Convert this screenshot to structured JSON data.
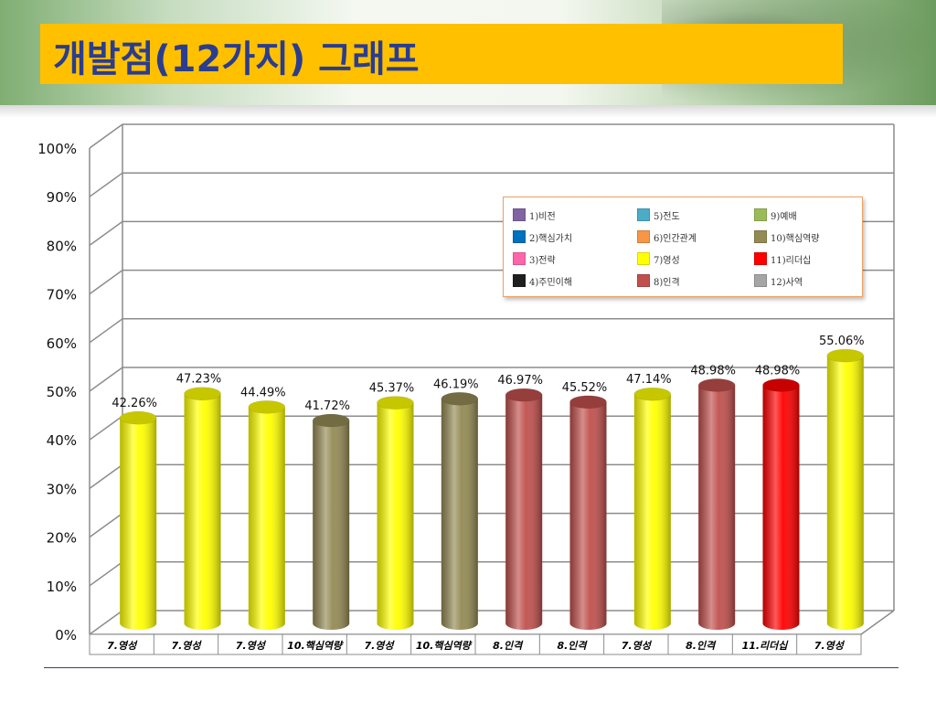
{
  "title": "개발점(12가지) 그래프",
  "chart_data": {
    "type": "bar",
    "categories": [
      "7.영성",
      "7.영성",
      "7.영성",
      "10.핵심역량",
      "7.영성",
      "10.핵심역량",
      "8.인격",
      "8.인격",
      "7.영성",
      "8.인격",
      "11.리더십",
      "7.영성"
    ],
    "values": [
      42.26,
      47.23,
      44.49,
      41.72,
      45.37,
      46.19,
      46.97,
      45.52,
      47.14,
      48.98,
      48.98,
      55.06
    ],
    "value_labels": [
      "42.26%",
      "47.23%",
      "44.49%",
      "41.72%",
      "45.37%",
      "46.19%",
      "46.97%",
      "45.52%",
      "47.14%",
      "48.98%",
      "48.98%",
      "55.06%"
    ],
    "bar_colors": [
      "#ffff00",
      "#ffff00",
      "#ffff00",
      "#948a54",
      "#ffff00",
      "#948a54",
      "#c0504d",
      "#c0504d",
      "#ffff00",
      "#c0504d",
      "#ff0000",
      "#ffff00"
    ],
    "ylim": [
      0,
      100
    ],
    "yticks": [
      "0%",
      "10%",
      "20%",
      "30%",
      "40%",
      "50%",
      "60%",
      "70%",
      "80%",
      "90%",
      "100%"
    ],
    "grid": true,
    "legend_position": "top-right",
    "legend": [
      {
        "label": "1)비전",
        "color": "#8064a2"
      },
      {
        "label": "5)전도",
        "color": "#4bacc6"
      },
      {
        "label": "9)예배",
        "color": "#9bbb59"
      },
      {
        "label": "2)핵심가치",
        "color": "#0070c0"
      },
      {
        "label": "6)인간관계",
        "color": "#f79646"
      },
      {
        "label": "10)핵심역량",
        "color": "#948a54"
      },
      {
        "label": "3)전략",
        "color": "#ff66aa"
      },
      {
        "label": "7)영성",
        "color": "#ffff00"
      },
      {
        "label": "11)리더십",
        "color": "#ff0000"
      },
      {
        "label": "4)주민이해",
        "color": "#1f1f1f"
      },
      {
        "label": "8)인격",
        "color": "#c0504d"
      },
      {
        "label": "12)사역",
        "color": "#a5a5a5"
      }
    ]
  }
}
